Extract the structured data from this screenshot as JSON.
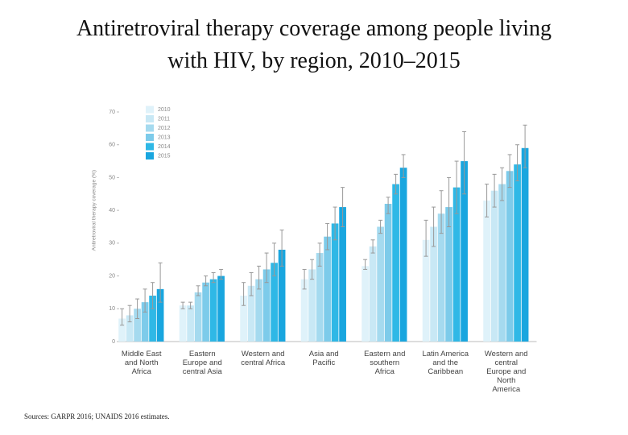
{
  "chart_data": {
    "type": "bar",
    "title": "Antiretroviral therapy coverage among people living with HIV, by region, 2010–2015",
    "y_label": "Antiretroviral therapy coverage (%)",
    "source": "Sources: GARPR 2016; UNAIDS 2016 estimates.",
    "categories": [
      "Middle East and North Africa",
      "Eastern Europe and central Asia",
      "Western and central Africa",
      "Asia and Pacific",
      "Eastern and southern Africa",
      "Latin America and the Caribbean",
      "Western and central Europe and North America"
    ],
    "series": [
      {
        "name": "2010",
        "color": "#dff2fa",
        "values": [
          7,
          11,
          14,
          19,
          23,
          31,
          43
        ],
        "lower": [
          5,
          10,
          11,
          16,
          22,
          26,
          38
        ],
        "upper": [
          10,
          12,
          18,
          22,
          25,
          37,
          48
        ]
      },
      {
        "name": "2011",
        "color": "#c8e8f5",
        "values": [
          8,
          11,
          17,
          22,
          29,
          35,
          46
        ],
        "lower": [
          6,
          10,
          14,
          19,
          27,
          29,
          41
        ],
        "upper": [
          11,
          12,
          21,
          25,
          31,
          41,
          51
        ]
      },
      {
        "name": "2012",
        "color": "#a5daef",
        "values": [
          10,
          15,
          19,
          27,
          35,
          39,
          48
        ],
        "lower": [
          7,
          14,
          16,
          23,
          33,
          33,
          43
        ],
        "upper": [
          13,
          17,
          23,
          30,
          37,
          46,
          53
        ]
      },
      {
        "name": "2013",
        "color": "#7dcbea",
        "values": [
          12,
          18,
          22,
          32,
          42,
          41,
          52
        ],
        "lower": [
          9,
          17,
          18,
          28,
          39,
          35,
          47
        ],
        "upper": [
          16,
          20,
          27,
          36,
          44,
          50,
          57
        ]
      },
      {
        "name": "2014",
        "color": "#2fb8e6",
        "values": [
          14,
          19,
          24,
          36,
          48,
          47,
          54
        ],
        "lower": [
          10,
          18,
          20,
          31,
          45,
          39,
          49
        ],
        "upper": [
          18,
          21,
          30,
          41,
          51,
          55,
          60
        ]
      },
      {
        "name": "2015",
        "color": "#19a6df",
        "values": [
          16,
          20,
          28,
          41,
          53,
          55,
          59
        ],
        "lower": [
          12,
          19,
          23,
          35,
          50,
          45,
          53
        ],
        "upper": [
          24,
          22,
          34,
          47,
          57,
          64,
          66
        ]
      }
    ],
    "ylim": [
      0,
      70
    ],
    "yticks": [
      0,
      10,
      20,
      30,
      40,
      50,
      60,
      70
    ],
    "grid": false,
    "legend": "top-left"
  }
}
